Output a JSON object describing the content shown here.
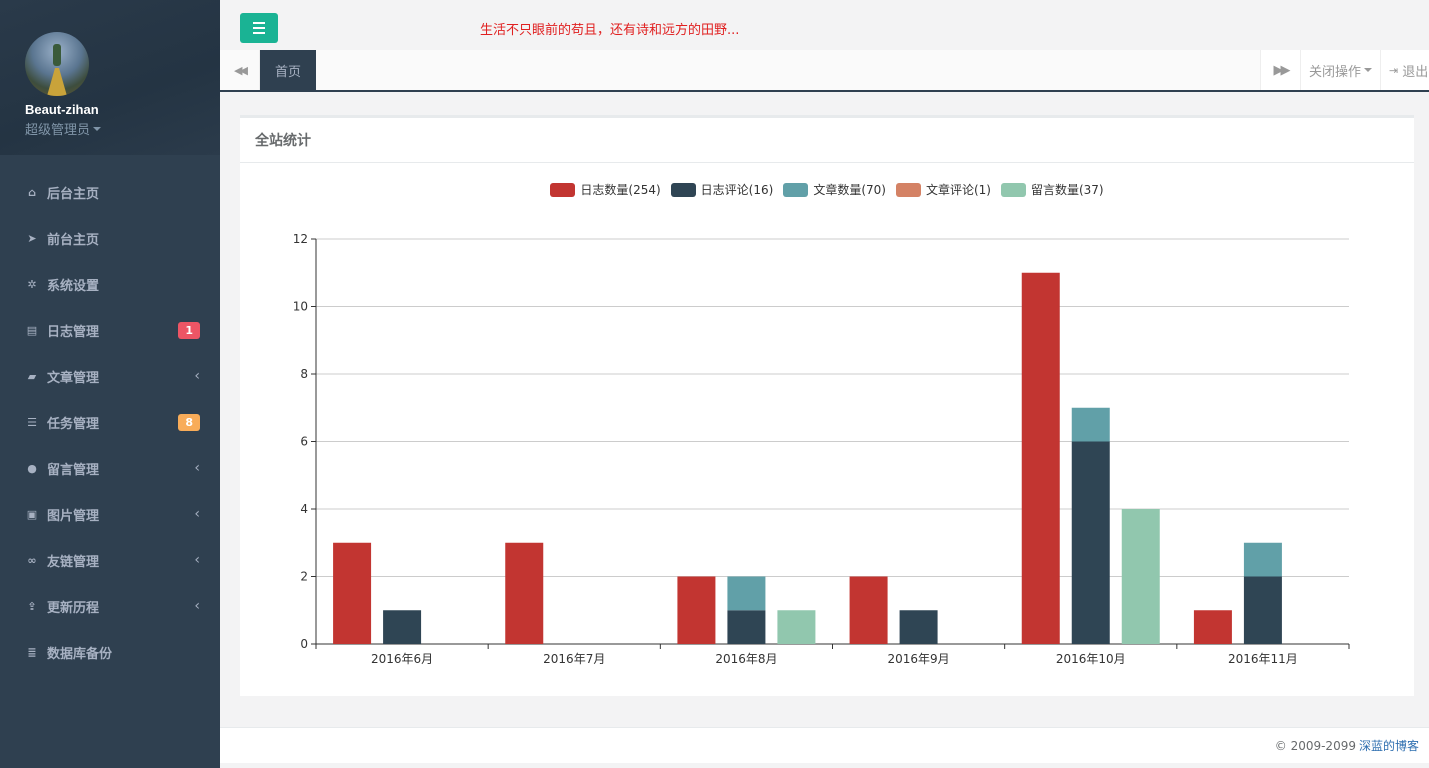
{
  "profile": {
    "name": "Beaut-zihan",
    "role": "超级管理员"
  },
  "nav": [
    {
      "icon": "home-icon",
      "glyph": "⌂",
      "label": "后台主页"
    },
    {
      "icon": "paper-plane-icon",
      "glyph": "➤",
      "label": "前台主页"
    },
    {
      "icon": "gear-icon",
      "glyph": "✲",
      "label": "系统设置"
    },
    {
      "icon": "file-icon",
      "glyph": "▤",
      "label": "日志管理",
      "badge": "1",
      "badge_color": "#ed5565"
    },
    {
      "icon": "book-icon",
      "glyph": "▰",
      "label": "文章管理",
      "chevron": "‹"
    },
    {
      "icon": "tasks-icon",
      "glyph": "☰",
      "label": "任务管理",
      "badge": "8",
      "badge_color": "#f8ac59"
    },
    {
      "icon": "comments-icon",
      "glyph": "●",
      "label": "留言管理",
      "chevron": "‹"
    },
    {
      "icon": "picture-icon",
      "glyph": "▣",
      "label": "图片管理",
      "chevron": "‹"
    },
    {
      "icon": "link-icon",
      "glyph": "∞",
      "label": "友链管理",
      "chevron": "‹"
    },
    {
      "icon": "upload-icon",
      "glyph": "⇪",
      "label": "更新历程",
      "chevron": "‹"
    },
    {
      "icon": "database-icon",
      "glyph": "≣",
      "label": "数据库备份"
    }
  ],
  "topbar": {
    "motto": "生活不只眼前的苟且，还有诗和远方的田野..."
  },
  "tabs": {
    "home": "首页",
    "close_ops": "关闭操作",
    "exit": "退出"
  },
  "panel": {
    "title": "全站统计"
  },
  "colors": {
    "accent": "#1ab394",
    "sidebar": "#2f4050",
    "motto": "#e02020"
  },
  "chart_data": {
    "type": "bar",
    "categories": [
      "2016年6月",
      "2016年7月",
      "2016年8月",
      "2016年9月",
      "2016年10月",
      "2016年11月"
    ],
    "ylim": [
      0,
      12
    ],
    "yticks": [
      0,
      2,
      4,
      6,
      8,
      10,
      12
    ],
    "grid": true,
    "legend_position": "top-center",
    "series": [
      {
        "name": "日志数量(254)",
        "color": "#c23531",
        "stack": "a",
        "values": [
          3,
          3,
          2,
          2,
          11,
          1
        ]
      },
      {
        "name": "日志评论(16)",
        "color": "#2f4554",
        "stack": "b",
        "values": [
          1,
          0,
          1,
          1,
          6,
          2
        ]
      },
      {
        "name": "文章数量(70)",
        "color": "#61a0a8",
        "stack": "b",
        "values": [
          0,
          0,
          1,
          0,
          1,
          1
        ]
      },
      {
        "name": "文章评论(1)",
        "color": "#d48265",
        "stack": "b",
        "values": [
          0,
          0,
          0,
          0,
          0,
          0
        ]
      },
      {
        "name": "留言数量(37)",
        "color": "#91c7ae",
        "stack": "c",
        "values": [
          0,
          0,
          1,
          0,
          4,
          0
        ]
      }
    ]
  },
  "footer": {
    "copyright": "© 2009-2099",
    "link": "深蓝的博客"
  }
}
